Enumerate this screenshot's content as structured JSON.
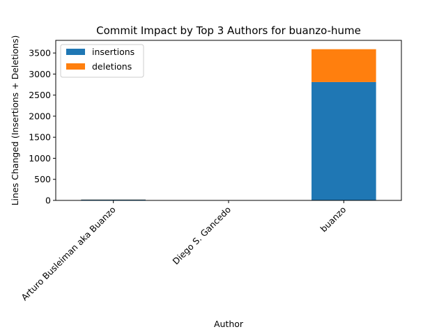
{
  "chart_data": {
    "type": "bar",
    "stacked": true,
    "title": "Commit Impact by Top 3 Authors for buanzo-hume",
    "xlabel": "Author",
    "ylabel": "Lines Changed (Insertions + Deletions)",
    "categories": [
      "Arturo Busleiman aka Buanzo",
      "Diego S. Gancedo",
      "buanzo"
    ],
    "series": [
      {
        "name": "insertions",
        "color": "#1f77b4",
        "values": [
          20,
          2,
          2810
        ]
      },
      {
        "name": "deletions",
        "color": "#ff7f0e",
        "values": [
          3,
          0,
          780
        ]
      }
    ],
    "ylim": [
      0,
      3800
    ],
    "yticks": [
      0,
      500,
      1000,
      1500,
      2000,
      2500,
      3000,
      3500
    ],
    "grid": false,
    "legend": "top-left"
  }
}
